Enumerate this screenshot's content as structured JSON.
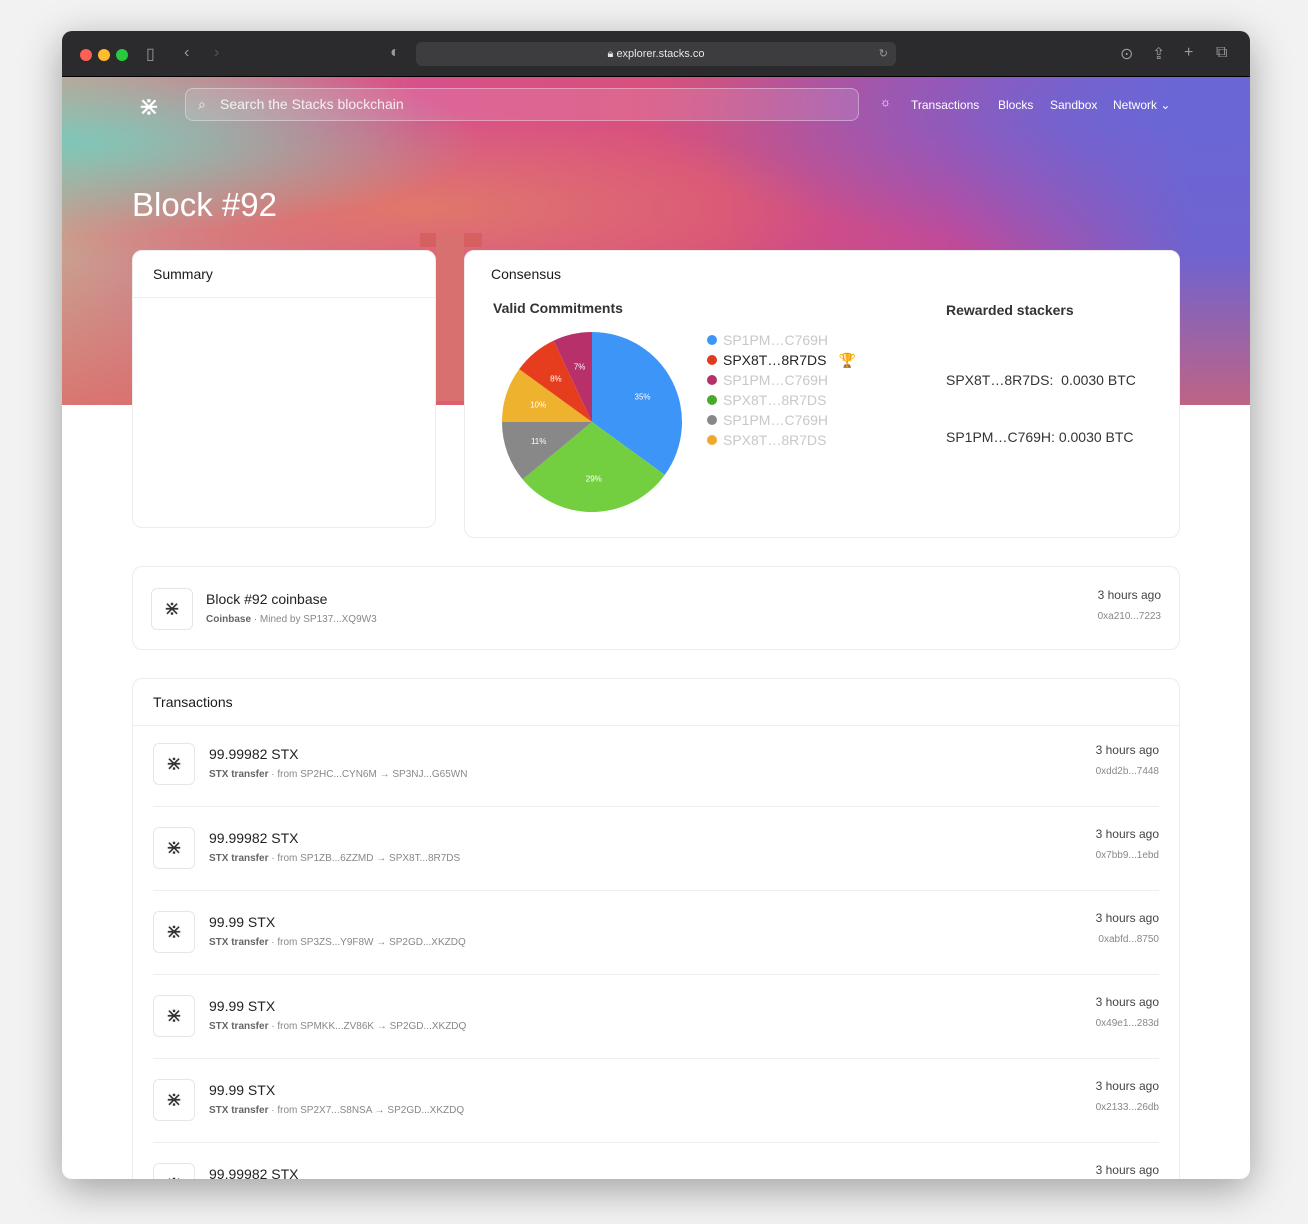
{
  "browser": {
    "url": "explorer.stacks.co"
  },
  "header": {
    "search_placeholder": "Search the Stacks blockchain",
    "nav": [
      "Transactions",
      "Blocks",
      "Sandbox",
      "Network"
    ]
  },
  "page": {
    "title": "Block #92"
  },
  "summary": {
    "title": "Summary"
  },
  "consensus": {
    "title": "Consensus",
    "valid_commitments": "Valid Commitments",
    "rewarded_title": "Rewarded stackers",
    "rewarded": [
      "SPX8T…8R7DS:  0.0030 BTC",
      "SP1PM…C769H: 0.0030 BTC"
    ],
    "legend": [
      {
        "label": "SP1PM…C769H",
        "color": "#3d95f7",
        "winner": false
      },
      {
        "label": "SPX8T…8R7DS",
        "color": "#e03a1f",
        "winner": true
      },
      {
        "label": "SP1PM…C769H",
        "color": "#b8306a",
        "winner": false
      },
      {
        "label": "SPX8T…8R7DS",
        "color": "#4aa82a",
        "winner": false
      },
      {
        "label": "SP1PM…C769H",
        "color": "#888888",
        "winner": false
      },
      {
        "label": "SPX8T…8R7DS",
        "color": "#f0a830",
        "winner": false
      }
    ]
  },
  "chart_data": {
    "type": "pie",
    "slices": [
      {
        "label": "35%",
        "value": 35,
        "color": "#3d95f7"
      },
      {
        "label": "29%",
        "value": 29,
        "color": "#74cf40"
      },
      {
        "label": "11%",
        "value": 11,
        "color": "#888888"
      },
      {
        "label": "10%",
        "value": 10,
        "color": "#efb22e"
      },
      {
        "label": "8%",
        "value": 8,
        "color": "#e63d1f"
      },
      {
        "label": "7%",
        "value": 7,
        "color": "#b8306a"
      }
    ]
  },
  "coinbase": {
    "title": "Block #92 coinbase",
    "type": "Coinbase",
    "detail": "Mined by SP137...XQ9W3",
    "time": "3 hours ago",
    "hash": "0xa210...7223"
  },
  "transactions": {
    "title": "Transactions",
    "items": [
      {
        "amount": "99.99982 STX",
        "type": "STX transfer",
        "from": "from SP2HC...CYN6M",
        "to": "SP3NJ...G65WN",
        "time": "3 hours ago",
        "hash": "0xdd2b...7448"
      },
      {
        "amount": "99.99982 STX",
        "type": "STX transfer",
        "from": "from SP1ZB...6ZZMD",
        "to": "SPX8T...8R7DS",
        "time": "3 hours ago",
        "hash": "0x7bb9...1ebd"
      },
      {
        "amount": "99.99 STX",
        "type": "STX transfer",
        "from": "from SP3ZS...Y9F8W",
        "to": "SP2GD...XKZDQ",
        "time": "3 hours ago",
        "hash": "0xabfd...8750"
      },
      {
        "amount": "99.99 STX",
        "type": "STX transfer",
        "from": "from SPMKK...ZV86K",
        "to": "SP2GD...XKZDQ",
        "time": "3 hours ago",
        "hash": "0x49e1...283d"
      },
      {
        "amount": "99.99 STX",
        "type": "STX transfer",
        "from": "from SP2X7...S8NSA",
        "to": "SP2GD...XKZDQ",
        "time": "3 hours ago",
        "hash": "0x2133...26db"
      },
      {
        "amount": "99.99982 STX",
        "type": "",
        "from": "",
        "to": "",
        "time": "3 hours ago",
        "hash": ""
      }
    ]
  }
}
